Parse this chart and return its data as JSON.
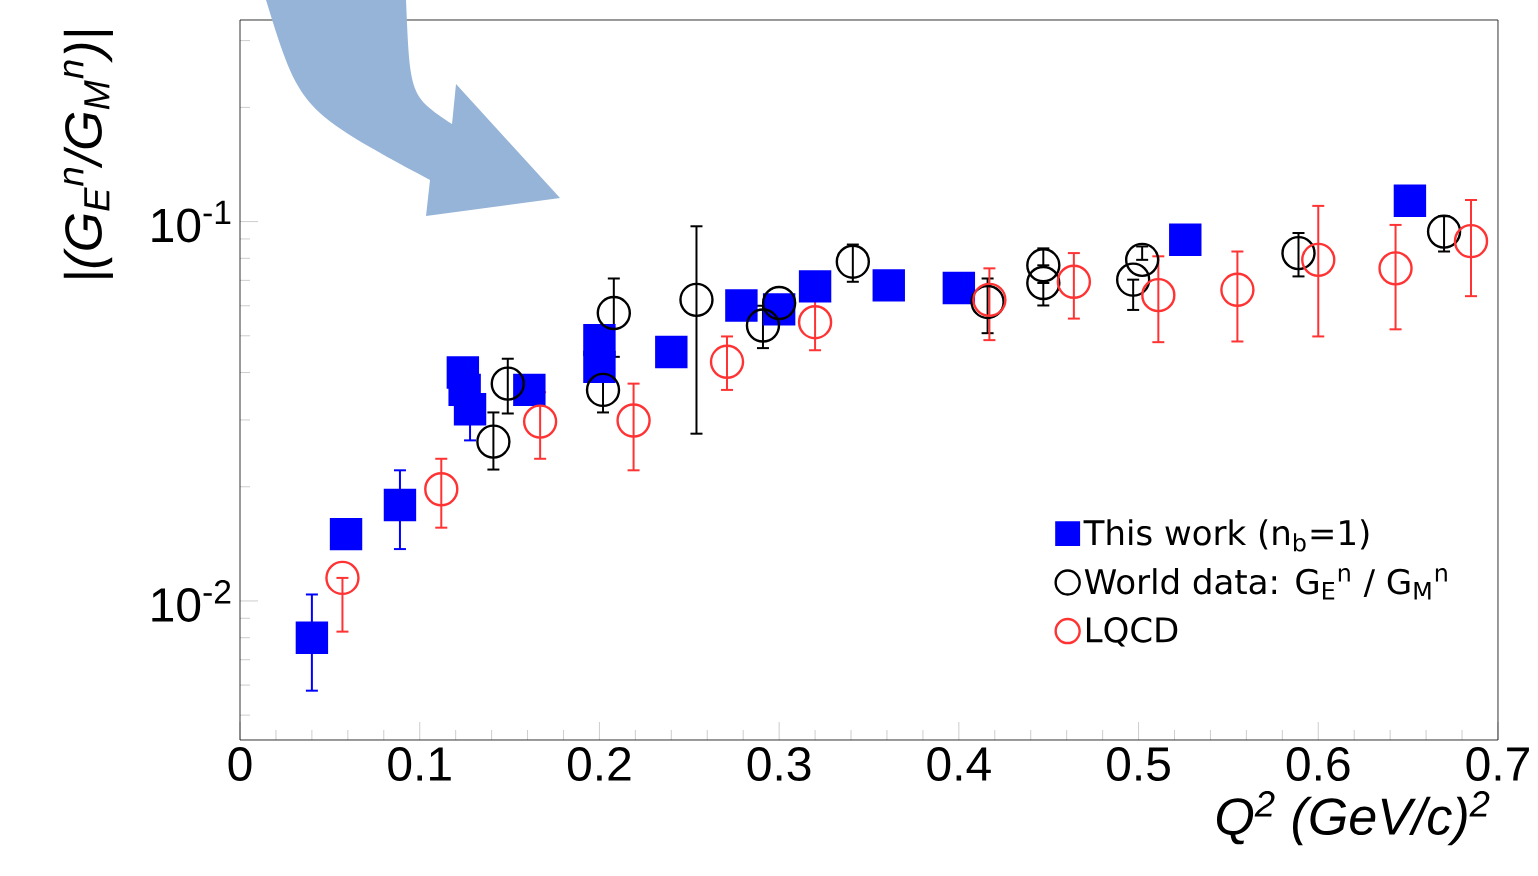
{
  "chart_data": {
    "type": "scatter",
    "xlabel": "Q$^{2}$ (GeV/c)$^{2}$",
    "ylabel": "|(G$_{E}$$^{n}$/G$_{M}$$^{n}$)|",
    "xlim": [
      0,
      0.7
    ],
    "xticks": [
      0,
      0.1,
      0.2,
      0.3,
      0.4,
      0.5,
      0.6,
      0.7
    ],
    "ylim": [
      0.0043,
      0.34
    ],
    "yticks": [
      {
        "value": 0.01,
        "label": "10$^{-2}$"
      },
      {
        "value": 0.1,
        "label": "10$^{-1}$"
      }
    ],
    "log": "y",
    "grid": false,
    "legend": "bottom right",
    "series": [
      {
        "name": "This work (n$_{b}$=1)",
        "color": "#0000ff",
        "marker": "square",
        "x": [
          0.04,
          0.059,
          0.089,
          0.124,
          0.125,
          0.128,
          0.161,
          0.2,
          0.2,
          0.24,
          0.279,
          0.3,
          0.32,
          0.361,
          0.4,
          0.526,
          0.651
        ],
        "values": [
          0.008,
          0.015,
          0.0179,
          0.04,
          0.036,
          0.032,
          0.036,
          0.0487,
          0.0414,
          0.0453,
          0.0601,
          0.0587,
          0.0675,
          0.0679,
          0.0668,
          0.0896,
          0.1135
        ],
        "errors": [
          [
            0.0058,
            0.0104
          ],
          null,
          [
            0.0137,
            0.0221
          ],
          null,
          null,
          [
            0.0265,
            0.032
          ],
          null,
          null,
          null,
          null,
          null,
          null,
          null,
          null,
          null,
          null,
          null
        ]
      },
      {
        "name": "World data: G$_{E}$$^{n}$ / G$_{M}$$^{n}$",
        "color": "#000000",
        "marker": "circle",
        "x": [
          0.141,
          0.149,
          0.208,
          0.202,
          0.254,
          0.291,
          0.3,
          0.341,
          0.416,
          0.447,
          0.447,
          0.497,
          0.502,
          0.589,
          0.67
        ],
        "values": [
          0.0263,
          0.0374,
          0.0574,
          0.036,
          0.0622,
          0.0532,
          0.061,
          0.0784,
          0.0614,
          0.0767,
          0.0689,
          0.0703,
          0.0793,
          0.0826,
          0.0941
        ],
        "errors": [
          [
            0.0222,
            0.0314
          ],
          [
            0.0312,
            0.0435
          ],
          0.0134,
          0.0046,
          [
            0.0276,
            0.0972
          ],
          0.0068,
          null,
          [
            0.0694,
            0.087
          ],
          [
            0.0508,
            0.0708
          ],
          [
            0.0767,
            0.085
          ],
          [
            0.0601,
            0.0689
          ],
          [
            0.0585,
            0.0703
          ],
          [
            0.0793,
            0.086
          ],
          [
            0.0717,
            0.0933
          ],
          [
            0.0834,
            0.1033
          ]
        ]
      },
      {
        "name": "LQCD",
        "color": "#ff3333",
        "marker": "circle",
        "x": [
          0.057,
          0.112,
          0.167,
          0.219,
          0.271,
          0.32,
          0.417,
          0.464,
          0.511,
          0.555,
          0.6,
          0.643,
          0.685
        ],
        "values": [
          0.0115,
          0.0197,
          0.0297,
          0.0299,
          0.0427,
          0.0543,
          0.0622,
          0.0694,
          0.064,
          0.0661,
          0.0793,
          0.0753,
          0.0888
        ],
        "errors": [
          [
            0.0083,
            0.0115
          ],
          [
            0.0156,
            0.0237
          ],
          [
            0.0237,
            0.0355
          ],
          [
            0.0221,
            0.0374
          ],
          [
            0.036,
            0.0498
          ],
          [
            0.0458,
            0.0622
          ],
          [
            0.0487,
            0.0753
          ],
          [
            0.0555,
            0.0826
          ],
          [
            0.0481,
            0.081
          ],
          [
            0.0483,
            0.0834
          ],
          [
            0.0498,
            0.11
          ],
          [
            0.052,
            0.098
          ],
          [
            0.0636,
            0.114
          ]
        ]
      }
    ]
  }
}
